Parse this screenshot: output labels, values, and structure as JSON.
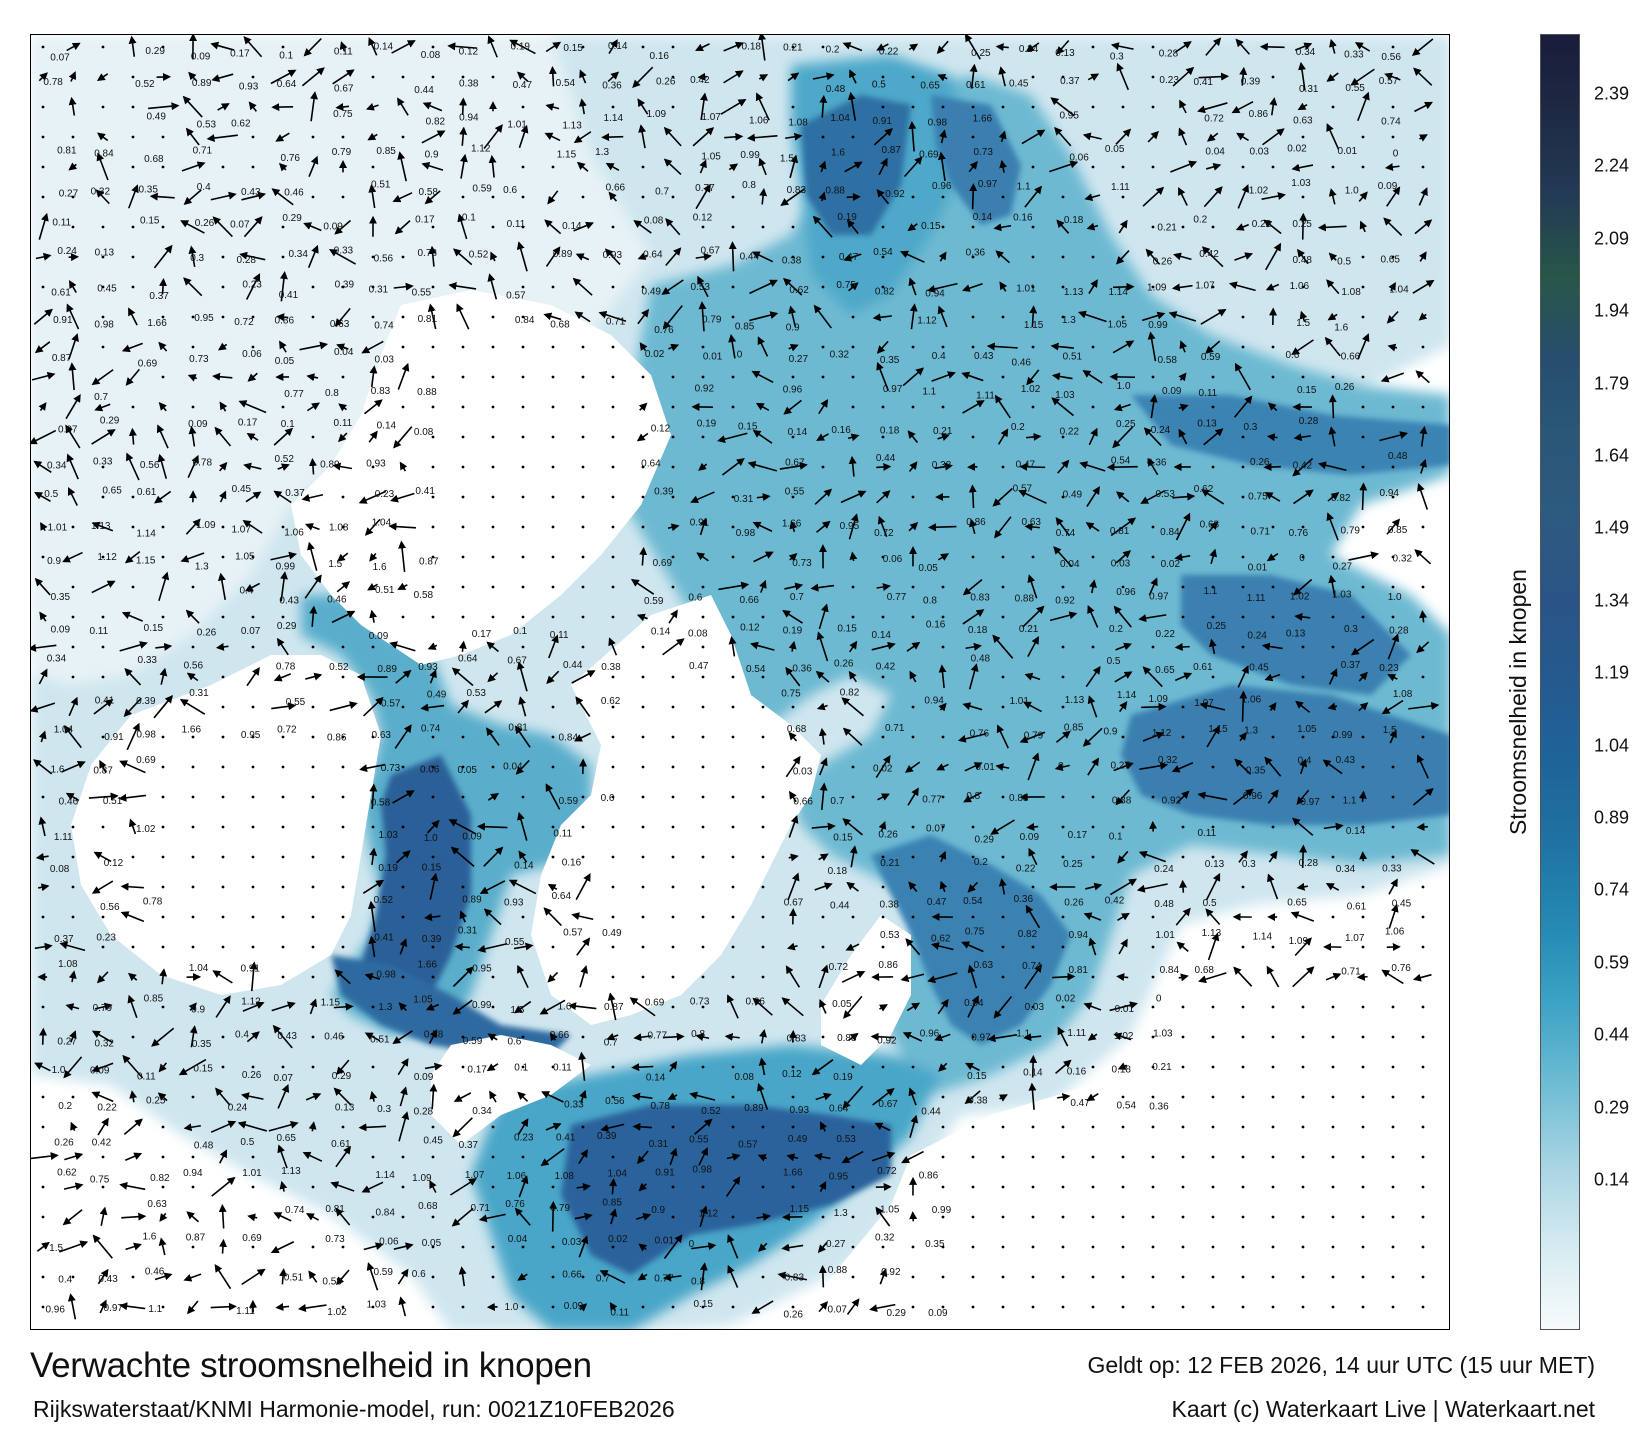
{
  "map": {
    "speed_labels": [
      {
        "text": "0.07"
      },
      {
        "text": "0.29"
      },
      {
        "text": "0.09"
      },
      {
        "text": "0.17"
      },
      {
        "text": "0.1"
      },
      {
        "text": "0.11"
      },
      {
        "text": "0.14"
      },
      {
        "text": "0.08"
      },
      {
        "text": "0.12"
      },
      {
        "text": "0.19"
      },
      {
        "text": "0.15"
      },
      {
        "text": "0.14"
      },
      {
        "text": "0.16"
      },
      {
        "text": "0.18"
      },
      {
        "text": "0.21"
      },
      {
        "text": "0.2"
      },
      {
        "text": "0.22"
      },
      {
        "text": "0.25"
      },
      {
        "text": "0.24"
      },
      {
        "text": "0.13"
      },
      {
        "text": "0.3"
      },
      {
        "text": "0.28"
      },
      {
        "text": "0.34"
      },
      {
        "text": "0.33"
      },
      {
        "text": "0.56"
      },
      {
        "text": "0.78"
      },
      {
        "text": "0.52"
      },
      {
        "text": "0.89"
      },
      {
        "text": "0.93"
      },
      {
        "text": "0.64"
      },
      {
        "text": "0.67"
      },
      {
        "text": "0.44"
      },
      {
        "text": "0.38"
      },
      {
        "text": "0.47"
      },
      {
        "text": "0.54"
      },
      {
        "text": "0.36"
      },
      {
        "text": "0.26"
      },
      {
        "text": "0.42"
      },
      {
        "text": "0.48"
      },
      {
        "text": "0.5"
      },
      {
        "text": "0.65"
      },
      {
        "text": "0.61"
      },
      {
        "text": "0.45"
      },
      {
        "text": "0.37"
      },
      {
        "text": "0.23"
      },
      {
        "text": "0.41"
      },
      {
        "text": "0.39"
      },
      {
        "text": "0.31"
      },
      {
        "text": "0.55"
      },
      {
        "text": "0.57"
      },
      {
        "text": "0.49"
      },
      {
        "text": "0.53"
      },
      {
        "text": "0.62"
      },
      {
        "text": "0.75"
      },
      {
        "text": "0.82"
      },
      {
        "text": "0.94"
      },
      {
        "text": "1.01"
      },
      {
        "text": "1.13"
      },
      {
        "text": "1.14"
      },
      {
        "text": "1.09"
      },
      {
        "text": "1.07"
      },
      {
        "text": "1.06"
      },
      {
        "text": "1.08"
      },
      {
        "text": "1.04"
      },
      {
        "text": "0.91"
      },
      {
        "text": "0.98"
      },
      {
        "text": "1.66"
      },
      {
        "text": "0.95"
      },
      {
        "text": "0.72"
      },
      {
        "text": "0.86"
      },
      {
        "text": "0.63"
      },
      {
        "text": "0.74"
      },
      {
        "text": "0.81"
      },
      {
        "text": "0.84"
      },
      {
        "text": "0.68"
      },
      {
        "text": "0.71"
      },
      {
        "text": "0.76"
      },
      {
        "text": "0.79"
      },
      {
        "text": "0.85"
      },
      {
        "text": "0.9"
      },
      {
        "text": "1.12"
      },
      {
        "text": "1.15"
      },
      {
        "text": "1.3"
      },
      {
        "text": "1.05"
      },
      {
        "text": "0.99"
      },
      {
        "text": "1.5"
      },
      {
        "text": "1.6"
      },
      {
        "text": "0.87"
      },
      {
        "text": "0.69"
      },
      {
        "text": "0.73"
      },
      {
        "text": "0.06"
      },
      {
        "text": "0.05"
      },
      {
        "text": "0.04"
      },
      {
        "text": "0.03"
      },
      {
        "text": "0.02"
      },
      {
        "text": "0.01"
      },
      {
        "text": "0"
      },
      {
        "text": "0.27"
      },
      {
        "text": "0.32"
      },
      {
        "text": "0.35"
      },
      {
        "text": "0.4"
      },
      {
        "text": "0.43"
      },
      {
        "text": "0.46"
      },
      {
        "text": "0.51"
      },
      {
        "text": "0.58"
      },
      {
        "text": "0.59"
      },
      {
        "text": "0.6"
      },
      {
        "text": "0.66"
      },
      {
        "text": "0.7"
      },
      {
        "text": "0.77"
      },
      {
        "text": "0.8"
      },
      {
        "text": "0.83"
      },
      {
        "text": "0.88"
      },
      {
        "text": "0.92"
      },
      {
        "text": "0.96"
      },
      {
        "text": "0.97"
      },
      {
        "text": "1.1"
      },
      {
        "text": "1.11"
      },
      {
        "text": "1.02"
      },
      {
        "text": "1.03"
      },
      {
        "text": "1.0"
      },
      {
        "text": "0.09"
      },
      {
        "text": "0.11"
      },
      {
        "text": "0.15"
      },
      {
        "text": "0.26"
      }
    ]
  },
  "legend": {
    "title": "Stroomsnelheid in knopen",
    "ticks": [
      "0.14",
      "0.29",
      "0.44",
      "0.59",
      "0.74",
      "0.89",
      "1.04",
      "1.19",
      "1.34",
      "1.49",
      "1.64",
      "1.79",
      "1.94",
      "2.09",
      "2.24",
      "2.39"
    ],
    "colors": [
      "#f7fbfc",
      "#d6ebf2",
      "#a9d5e3",
      "#6fbdd4",
      "#3ea3c5",
      "#2489b3",
      "#1f73a3",
      "#1f6499",
      "#245a8f",
      "#2b5487",
      "#2d5a80",
      "#2a5778",
      "#264e6e",
      "#265748",
      "#233b55",
      "#1e2a45",
      "#191c3a"
    ]
  },
  "footer": {
    "title": "Verwachte stroomsnelheid in knopen",
    "valid": "Geldt op: 12 FEB 2026, 14 uur UTC (15 uur MET)",
    "model": "Rijkswaterstaat/KNMI Harmonie-model, run: 0021Z10FEB2026",
    "credit": "Kaart (c) Waterkaart Live | Waterkaart.net"
  }
}
